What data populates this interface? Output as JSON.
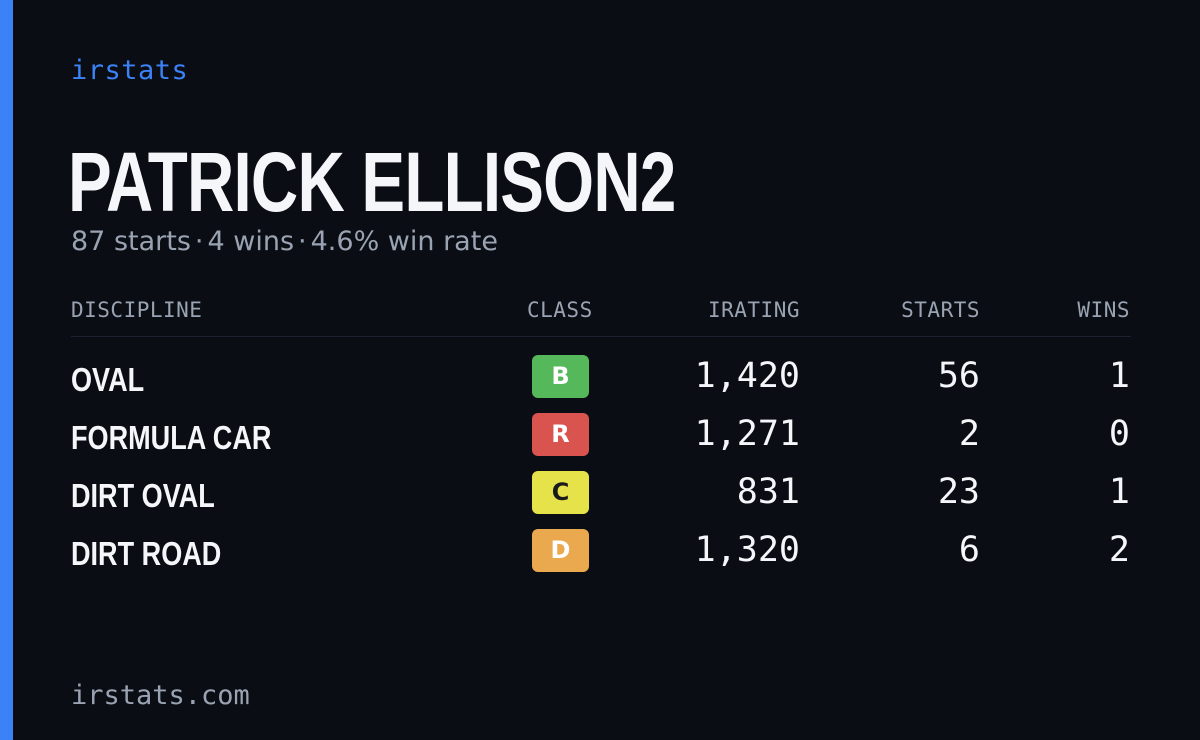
{
  "brand": "irstats",
  "driver": {
    "name": "PATRICK ELLISON2"
  },
  "summary": {
    "starts": "87 starts",
    "wins": "4 wins",
    "win_rate": "4.6% win rate",
    "separator": "·"
  },
  "table": {
    "headers": {
      "discipline": "DISCIPLINE",
      "class": "CLASS",
      "irating": "IRATING",
      "starts": "STARTS",
      "wins": "WINS"
    },
    "rows": [
      {
        "discipline": "OVAL",
        "class": "B",
        "class_color": "#55b85a",
        "irating": "1,420",
        "starts": "56",
        "wins": "1"
      },
      {
        "discipline": "FORMULA CAR",
        "class": "R",
        "class_color": "#d9534f",
        "irating": "1,271",
        "starts": "2",
        "wins": "0"
      },
      {
        "discipline": "DIRT OVAL",
        "class": "C",
        "class_color": "#e6e24a",
        "irating": "831",
        "starts": "23",
        "wins": "1"
      },
      {
        "discipline": "DIRT ROAD",
        "class": "D",
        "class_color": "#eba94f",
        "irating": "1,320",
        "starts": "6",
        "wins": "2"
      }
    ]
  },
  "footer": {
    "url": "irstats.com"
  },
  "colors": {
    "accent": "#3b82f6",
    "background": "#0b0d14",
    "muted_text": "#9aa3b2",
    "primary_text": "#f5f6fa"
  }
}
